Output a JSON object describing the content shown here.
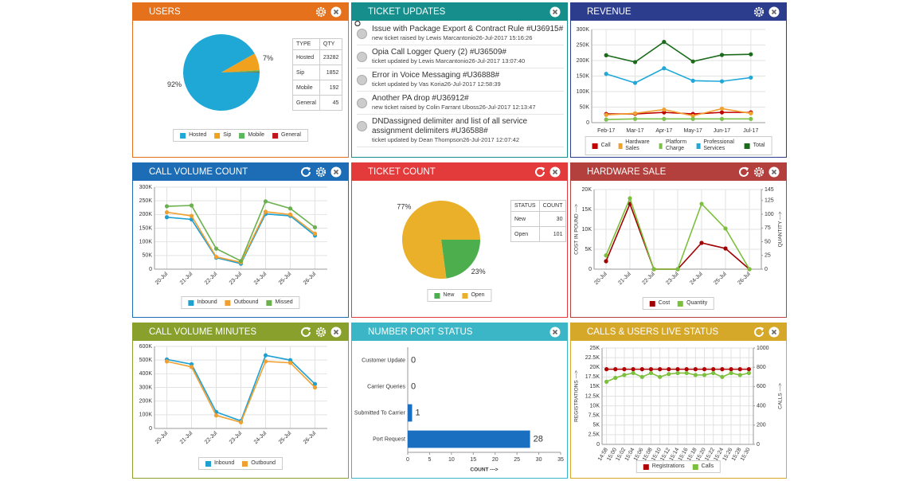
{
  "chart_data": [
    {
      "type": "pie",
      "title": "USERS",
      "categories": [
        "Hosted",
        "Sip",
        "Mobile",
        "General"
      ],
      "values": [
        91.77,
        7.3,
        0.76,
        0.18
      ],
      "value_labels": [
        "92%",
        "7%",
        null,
        null
      ],
      "colors": [
        "#1fa8d6",
        "#f0a21e",
        "#5cb85c",
        "#c0161b"
      ],
      "table": {
        "columns": [
          "TYPE",
          "QTY"
        ],
        "rows": [
          [
            "Hosted",
            23282
          ],
          [
            "Sip",
            1852
          ],
          [
            "Mobile",
            192
          ],
          [
            "General",
            45
          ]
        ]
      }
    },
    {
      "type": "line",
      "title": "REVENUE",
      "categories": [
        "Feb-17",
        "Mar-17",
        "Apr-17",
        "May-17",
        "Jun-17",
        "Jul-17"
      ],
      "ylim": [
        0,
        300000
      ],
      "yticks": [
        0,
        {
          "value": 50000,
          "label": "50K"
        },
        {
          "value": 100000,
          "label": "100K"
        },
        {
          "value": 150000,
          "label": "150K"
        },
        {
          "value": 200000,
          "label": "200K"
        },
        {
          "value": 250000,
          "label": "250K"
        },
        {
          "value": 300000,
          "label": "300K"
        }
      ],
      "grid": true,
      "series": [
        {
          "name": "Call",
          "color": "#c00000",
          "values": [
            28000,
            28000,
            33000,
            28000,
            33000,
            33000
          ]
        },
        {
          "name": "Hardware Sales",
          "color": "#f0a030",
          "values": [
            25000,
            30000,
            42000,
            22000,
            45000,
            30000
          ]
        },
        {
          "name": "Platform Charge",
          "color": "#7cc04b",
          "values": [
            10000,
            12000,
            12000,
            12000,
            12000,
            12000
          ]
        },
        {
          "name": "Professional Services",
          "color": "#20a8d8",
          "values": [
            157000,
            128000,
            175000,
            135000,
            133000,
            145000
          ]
        },
        {
          "name": "Total",
          "color": "#1a6b1a",
          "values": [
            217000,
            195000,
            260000,
            197000,
            218000,
            220000
          ]
        }
      ]
    },
    {
      "type": "line",
      "title": "CALL VOLUME COUNT",
      "categories": [
        "20-Jul",
        "21-Jul",
        "22-Jul",
        "23-Jul",
        "24-Jul",
        "25-Jul",
        "26-Jul"
      ],
      "ylim": [
        0,
        300000
      ],
      "yticks": [
        0,
        {
          "value": 50000,
          "label": "50K"
        },
        {
          "value": 100000,
          "label": "100K"
        },
        {
          "value": 150000,
          "label": "150K"
        },
        {
          "value": 200000,
          "label": "200K"
        },
        {
          "value": 250000,
          "label": "250K"
        },
        {
          "value": 300000,
          "label": "300K"
        }
      ],
      "grid": true,
      "series": [
        {
          "name": "Inbound",
          "color": "#1fa0d0",
          "values": [
            190000,
            182000,
            42000,
            20000,
            202000,
            195000,
            123000
          ]
        },
        {
          "name": "Outbound",
          "color": "#f0a030",
          "values": [
            208000,
            195000,
            45000,
            25000,
            210000,
            200000,
            130000
          ]
        },
        {
          "name": "Missed",
          "color": "#6ab04c",
          "values": [
            230000,
            233000,
            75000,
            30000,
            248000,
            222000,
            153000
          ]
        }
      ]
    },
    {
      "type": "pie",
      "title": "TICKET COUNT",
      "categories": [
        "New",
        "Open"
      ],
      "values": [
        22.9,
        77.1
      ],
      "value_labels": [
        "23%",
        "77%"
      ],
      "colors": [
        "#4cae4c",
        "#eab02a"
      ],
      "table": {
        "columns": [
          "STATUS",
          "COUNT"
        ],
        "rows": [
          [
            "New",
            30
          ],
          [
            "Open",
            101
          ]
        ]
      }
    },
    {
      "type": "line",
      "title": "HARDWARE SALE",
      "categories": [
        "20-Jul",
        "21-Jul",
        "22-Jul",
        "23-Jul",
        "24-Jul",
        "25-Jul",
        "26-Jul"
      ],
      "ylabel": "COST IN POUND --->",
      "y2label": "QUANTITY --->",
      "ylim": [
        0,
        20000
      ],
      "yticks": [
        0,
        {
          "value": 5000,
          "label": "5K"
        },
        {
          "value": 10000,
          "label": "10K"
        },
        {
          "value": 15000,
          "label": "15K"
        },
        {
          "value": 20000,
          "label": "20K"
        }
      ],
      "y2lim": [
        0,
        145
      ],
      "y2ticks": [
        0,
        25,
        50,
        75,
        100,
        125,
        145
      ],
      "grid": true,
      "series": [
        {
          "name": "Cost",
          "color": "#a00000",
          "values": [
            2000,
            16400,
            0,
            0,
            6600,
            5200,
            0
          ]
        },
        {
          "name": "Quantity",
          "color": "#7cbf3c",
          "axis": "y2",
          "values": [
            25,
            129,
            0,
            0,
            119,
            74,
            0
          ]
        }
      ]
    },
    {
      "type": "line",
      "title": "CALL VOLUME MINUTES",
      "categories": [
        "20-Jul",
        "21-Jul",
        "22-Jul",
        "23-Jul",
        "24-Jul",
        "25-Jul",
        "26-Jul"
      ],
      "ylim": [
        0,
        600000
      ],
      "yticks": [
        0,
        {
          "value": 100000,
          "label": "100K"
        },
        {
          "value": 200000,
          "label": "200K"
        },
        {
          "value": 300000,
          "label": "300K"
        },
        {
          "value": 400000,
          "label": "400K"
        },
        {
          "value": 500000,
          "label": "500K"
        },
        {
          "value": 600000,
          "label": "600K"
        }
      ],
      "grid": true,
      "series": [
        {
          "name": "Inbound",
          "color": "#1fa0d0",
          "values": [
            505000,
            470000,
            120000,
            55000,
            535000,
            500000,
            325000
          ]
        },
        {
          "name": "Outbound",
          "color": "#f0a030",
          "values": [
            490000,
            450000,
            95000,
            45000,
            490000,
            480000,
            300000
          ]
        }
      ]
    },
    {
      "type": "hbar",
      "title": "NUMBER PORT STATUS",
      "categories": [
        "Customer Update",
        "Carrier Queries",
        "Submitted To Carrier",
        "Port Request"
      ],
      "values": [
        0,
        0,
        1,
        28
      ],
      "color": "#1a6fc0",
      "xlim": [
        0,
        35
      ],
      "xticks": [
        0,
        5,
        10,
        15,
        20,
        25,
        30,
        35
      ],
      "xlabel": "COUNT --->",
      "grid": false
    },
    {
      "type": "line",
      "title": "CALLS & USERS LIVE STATUS",
      "categories": [
        "14:58",
        "15:00",
        "15:02",
        "15:04",
        "15:06",
        "15:08",
        "15:10",
        "15:12",
        "15:14",
        "15:16",
        "15:18",
        "15:20",
        "15:22",
        "15:24",
        "15:26",
        "15:28",
        "15:30"
      ],
      "ylabel": "REGISTRATIONS --->",
      "y2label": "CALLS --->",
      "ylim": [
        0,
        25000
      ],
      "yticks": [
        0,
        {
          "value": 2500,
          "label": "2.5K"
        },
        {
          "value": 5000,
          "label": "5K"
        },
        {
          "value": 7500,
          "label": "7.5K"
        },
        {
          "value": 10000,
          "label": "10K"
        },
        {
          "value": 12500,
          "label": "12.5K"
        },
        {
          "value": 15000,
          "label": "15K"
        },
        {
          "value": 17500,
          "label": "17.5K"
        },
        {
          "value": 20000,
          "label": "20K"
        },
        {
          "value": 22500,
          "label": "22.5K"
        },
        {
          "value": 25000,
          "label": "25K"
        }
      ],
      "y2lim": [
        0,
        1000
      ],
      "y2ticks": [
        0,
        200,
        400,
        600,
        800,
        1000
      ],
      "grid": true,
      "series": [
        {
          "name": "Registrations",
          "color": "#b00000",
          "values": [
            19500,
            19500,
            19500,
            19500,
            19500,
            19500,
            19500,
            19500,
            19500,
            19500,
            19500,
            19500,
            19500,
            19500,
            19500,
            19500,
            19500
          ]
        },
        {
          "name": "Calls",
          "color": "#7cbf3c",
          "axis": "y2",
          "values": [
            650,
            690,
            720,
            740,
            700,
            740,
            700,
            730,
            740,
            740,
            720,
            720,
            740,
            700,
            740,
            720,
            740
          ]
        }
      ]
    }
  ],
  "ticket_updates": {
    "title": "TICKET UPDATES",
    "items": [
      {
        "title": "Issue with Package Export & Contract Rule #U36915#",
        "meta": "new ticket raised by Lewis Marcantonio",
        "time": "26-Jul-2017 15:16:26"
      },
      {
        "title": "Opia Call Logger Query (2) #U36509#",
        "meta": "ticket updated by Lewis Marcantonio",
        "time": "26-Jul-2017 13:07:40"
      },
      {
        "title": "Error in Voice Messaging #U36888#",
        "meta": "ticket updated by Vas Koria",
        "time": "26-Jul-2017 12:58:39"
      },
      {
        "title": "Another PA drop #U36912#",
        "meta": "new ticket raised by Colin Farrant Uboss",
        "time": "26-Jul-2017 12:13:47"
      },
      {
        "title": "DNDassigned delimiter and list of all service assignment delimiters #U36588#",
        "meta": "ticket updated by Dean Thompson",
        "time": "26-Jul-2017 12:07:42"
      }
    ]
  }
}
